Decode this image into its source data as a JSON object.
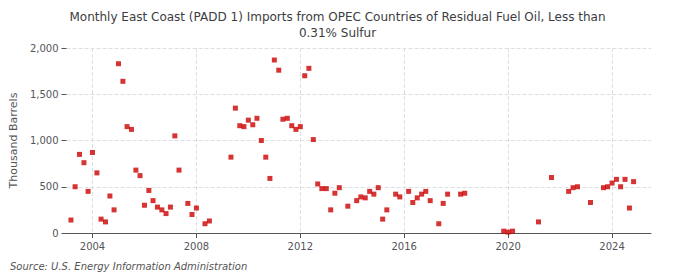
{
  "chart_data": {
    "type": "scatter",
    "title": "Monthly East Coast (PADD 1) Imports from OPEC Countries of Residual Fuel Oil, Less than\n0.31% Sulfur",
    "ylabel": "Thousand Barrels",
    "annotation": "Source: U.S. Energy Information Administration",
    "color": "#cc0000",
    "marker": "square",
    "grid": true,
    "xlim": [
      2003.0,
      2025.5
    ],
    "xticks": [
      2004,
      2008,
      2012,
      2016,
      2020,
      2024
    ],
    "ylim": [
      0,
      2000
    ],
    "yticks": [
      0,
      500,
      {
        "value": 1000,
        "label": "1,000"
      },
      {
        "value": 1500,
        "label": "1,500"
      },
      {
        "value": 2000,
        "label": "2,000"
      }
    ],
    "x": [
      2003.17,
      2003.33,
      2003.5,
      2003.67,
      2003.83,
      2004.0,
      2004.17,
      2004.33,
      2004.5,
      2004.67,
      2004.83,
      2005.0,
      2005.17,
      2005.33,
      2005.5,
      2005.67,
      2005.83,
      2006.0,
      2006.17,
      2006.33,
      2006.5,
      2006.67,
      2006.83,
      2007.0,
      2007.17,
      2007.33,
      2007.67,
      2007.83,
      2008.0,
      2008.33,
      2008.5,
      2009.33,
      2009.5,
      2009.67,
      2009.83,
      2010.0,
      2010.17,
      2010.33,
      2010.5,
      2010.67,
      2010.83,
      2011.0,
      2011.17,
      2011.33,
      2011.5,
      2011.67,
      2011.83,
      2012.0,
      2012.17,
      2012.33,
      2012.5,
      2012.67,
      2012.83,
      2013.0,
      2013.17,
      2013.33,
      2013.5,
      2013.83,
      2014.17,
      2014.33,
      2014.5,
      2014.67,
      2014.83,
      2015.0,
      2015.17,
      2015.33,
      2015.67,
      2015.83,
      2016.17,
      2016.33,
      2016.5,
      2016.67,
      2016.83,
      2017.0,
      2017.33,
      2017.5,
      2017.67,
      2018.17,
      2018.33,
      2019.83,
      2020.0,
      2020.17,
      2021.17,
      2021.67,
      2022.33,
      2022.5,
      2022.67,
      2023.17,
      2023.67,
      2023.83,
      2024.0,
      2024.17,
      2024.33,
      2024.5,
      2024.67,
      2024.83
    ],
    "values": [
      140,
      500,
      850,
      760,
      450,
      870,
      650,
      150,
      120,
      400,
      250,
      1830,
      1640,
      1150,
      1120,
      680,
      620,
      300,
      460,
      350,
      280,
      250,
      210,
      280,
      1050,
      680,
      320,
      200,
      270,
      100,
      130,
      820,
      1350,
      1160,
      1150,
      1220,
      1170,
      1240,
      1000,
      820,
      590,
      1870,
      1760,
      1230,
      1240,
      1160,
      1120,
      1150,
      1700,
      1780,
      1010,
      530,
      480,
      480,
      250,
      430,
      490,
      290,
      350,
      390,
      380,
      450,
      420,
      490,
      150,
      250,
      420,
      390,
      450,
      330,
      380,
      420,
      450,
      350,
      100,
      320,
      420,
      420,
      430,
      20,
      10,
      20,
      120,
      600,
      450,
      490,
      500,
      330,
      490,
      500,
      540,
      580,
      500,
      580,
      270,
      555
    ]
  }
}
